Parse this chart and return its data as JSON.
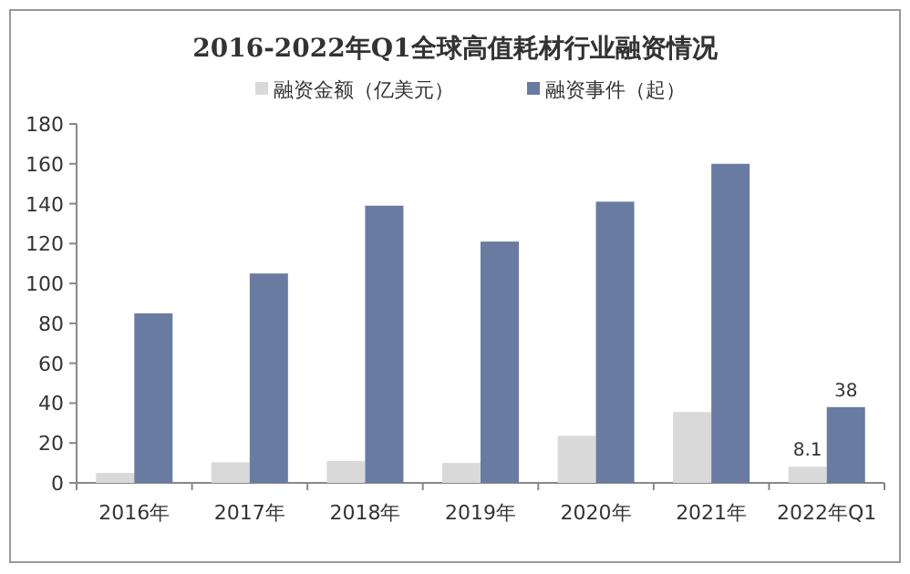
{
  "chart_data": {
    "type": "bar",
    "title": "2016-2022年Q1全球高值耗材行业融资情况",
    "categories": [
      "2016年",
      "2017年",
      "2018年",
      "2019年",
      "2020年",
      "2021年",
      "2022年Q1"
    ],
    "series": [
      {
        "name": "融资金额（亿美元）",
        "color": "#d9d9d9",
        "values": [
          5,
          10.3,
          11,
          10,
          23.6,
          35.5,
          8.1
        ],
        "value_labels": [
          null,
          null,
          null,
          null,
          null,
          null,
          "8.1"
        ]
      },
      {
        "name": "融资事件（起）",
        "color": "#6a7ba2",
        "values": [
          85,
          105,
          139,
          121,
          141,
          160,
          38
        ],
        "value_labels": [
          null,
          null,
          null,
          null,
          null,
          null,
          "38"
        ]
      }
    ],
    "ylim": [
      0,
      180
    ],
    "yticks": [
      0,
      20,
      40,
      60,
      80,
      100,
      120,
      140,
      160,
      180
    ],
    "legend": "top",
    "grid": false
  }
}
